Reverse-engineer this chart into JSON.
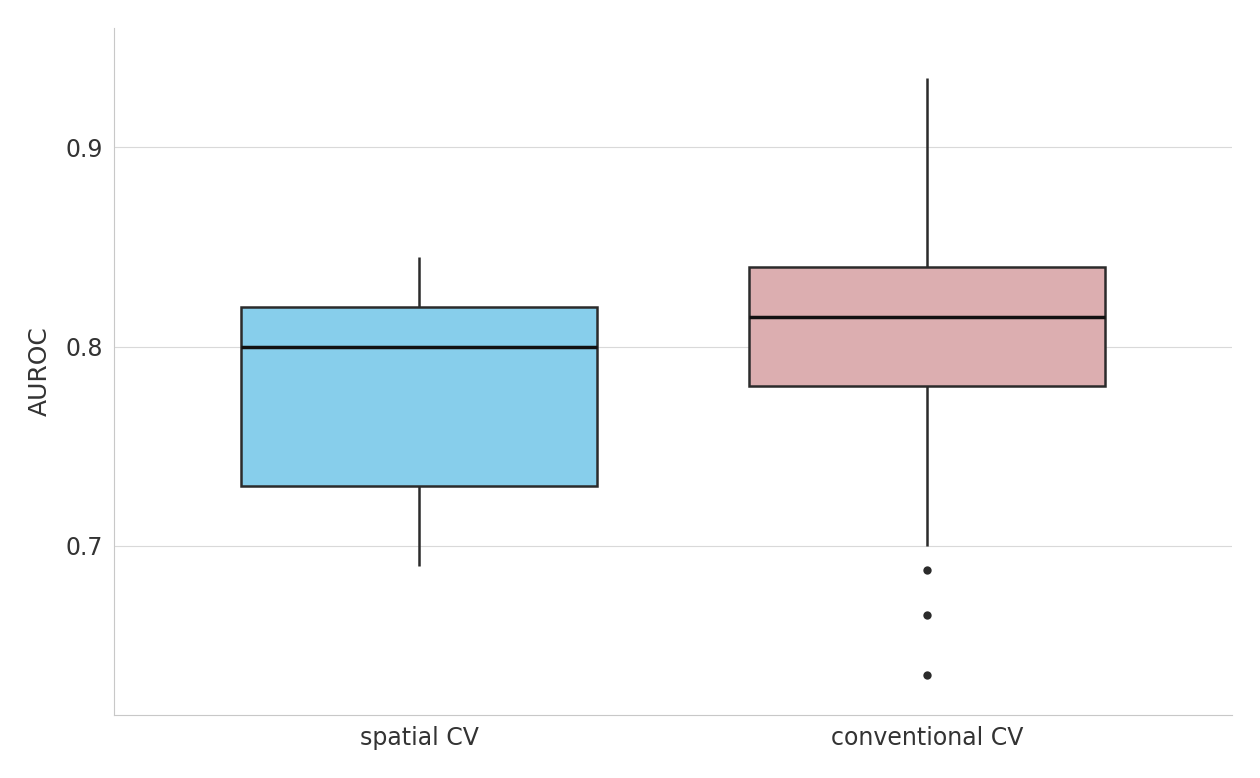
{
  "categories": [
    "spatial CV",
    "conventional CV"
  ],
  "box_colors": [
    "#87CEEB",
    "#DCAEB0"
  ],
  "box_edge_color": "#2b2b2b",
  "median_color": "#111111",
  "whisker_color": "#2b2b2b",
  "flier_color": "#2b2b2b",
  "spatial_cv": {
    "q1": 0.73,
    "median": 0.8,
    "q3": 0.82,
    "whisker_low": 0.69,
    "whisker_high": 0.845,
    "outliers": []
  },
  "conventional_cv": {
    "q1": 0.78,
    "median": 0.815,
    "q3": 0.84,
    "whisker_low": 0.7,
    "whisker_high": 0.935,
    "outliers": [
      0.688,
      0.665,
      0.635
    ]
  },
  "ylabel": "AUROC",
  "ylim": [
    0.615,
    0.96
  ],
  "yticks": [
    0.7,
    0.8,
    0.9
  ],
  "background_color": "#ffffff",
  "grid_color": "#d9d9d9",
  "box_width": 0.7,
  "linewidth": 1.8,
  "median_linewidth": 2.5,
  "flier_size": 6
}
